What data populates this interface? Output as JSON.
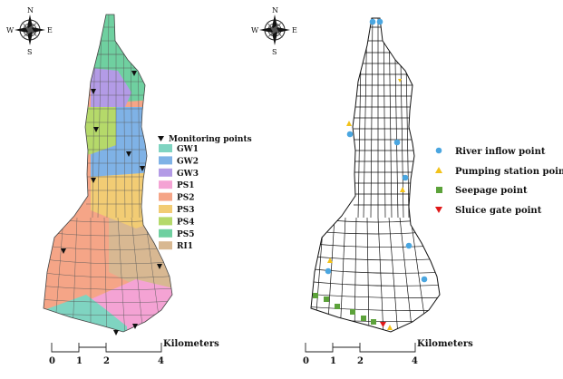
{
  "compass": {
    "north": "N",
    "south": "S",
    "east": "E",
    "west": "W"
  },
  "left_legend": {
    "title": "Monitoring points",
    "items": [
      {
        "label": "GW1",
        "color": "#7fd4c1"
      },
      {
        "label": "GW2",
        "color": "#7fb2e6"
      },
      {
        "label": "GW3",
        "color": "#b39be6"
      },
      {
        "label": "PS1",
        "color": "#f4a3d4"
      },
      {
        "label": "PS2",
        "color": "#f5a587"
      },
      {
        "label": "PS3",
        "color": "#f2cc74"
      },
      {
        "label": "PS4",
        "color": "#b5d96a"
      },
      {
        "label": "PS5",
        "color": "#6fd0a0"
      },
      {
        "label": "RI1",
        "color": "#d8b892"
      }
    ]
  },
  "right_legend": {
    "items": [
      {
        "label": "River inflow point",
        "symbol": "circle",
        "color": "#4aa6e0"
      },
      {
        "label": "Pumping station point",
        "symbol": "triangle-up",
        "color": "#f2c21a"
      },
      {
        "label": "Seepage point",
        "symbol": "square",
        "color": "#5ca23a"
      },
      {
        "label": "Sluice gate point",
        "symbol": "triangle-down",
        "color": "#e01818"
      }
    ]
  },
  "scale_bar": {
    "unit": "Kilometers",
    "ticks": [
      "0",
      "1",
      "2",
      "4"
    ]
  }
}
